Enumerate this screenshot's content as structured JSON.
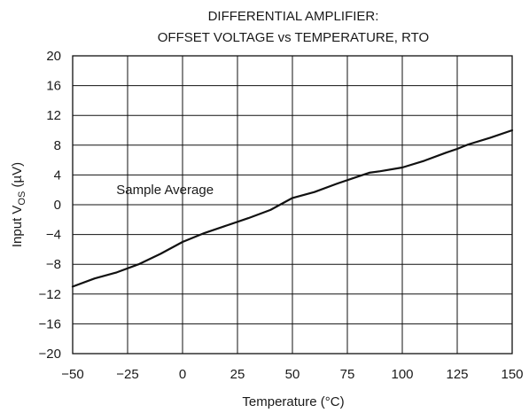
{
  "chart_data": {
    "type": "line",
    "title_line1": "DIFFERENTIAL AMPLIFIER:",
    "title_line2": "OFFSET VOLTAGE vs TEMPERATURE, RTO",
    "xlabel": "Temperature (°C)",
    "ylabel_prefix": "Input V",
    "ylabel_sub": "OS",
    "ylabel_suffix": " (µV)",
    "xlim": [
      -50,
      150
    ],
    "ylim": [
      -20,
      20
    ],
    "xticks": [
      -50,
      -25,
      0,
      25,
      50,
      75,
      100,
      125,
      150
    ],
    "yticks": [
      20,
      16,
      12,
      8,
      4,
      0,
      -4,
      -8,
      -12,
      -16,
      -20
    ],
    "xtick_labels": [
      "−50",
      "−25",
      "0",
      "25",
      "50",
      "75",
      "100",
      "125",
      "150"
    ],
    "ytick_labels": [
      "20",
      "16",
      "12",
      "8",
      "4",
      "0",
      "−4",
      "−8",
      "−12",
      "−16",
      "−20"
    ],
    "grid": true,
    "annotation": {
      "text": "Sample Average",
      "x": -8,
      "y": 2
    },
    "series": [
      {
        "x": [
          -50,
          -40,
          -30,
          -20,
          -10,
          0,
          10,
          20,
          30,
          40,
          50,
          60,
          70,
          80,
          85,
          90,
          100,
          110,
          120,
          125,
          130,
          140,
          150
        ],
        "y": [
          -11,
          -9.9,
          -9.1,
          -8.0,
          -6.6,
          -5.0,
          -3.8,
          -2.8,
          -1.8,
          -0.7,
          0.9,
          1.7,
          2.8,
          3.8,
          4.3,
          4.5,
          5.0,
          5.9,
          7.0,
          7.5,
          8.1,
          9.0,
          10.0
        ]
      }
    ],
    "colors": {
      "line": "#111111",
      "grid": "#111111"
    }
  }
}
